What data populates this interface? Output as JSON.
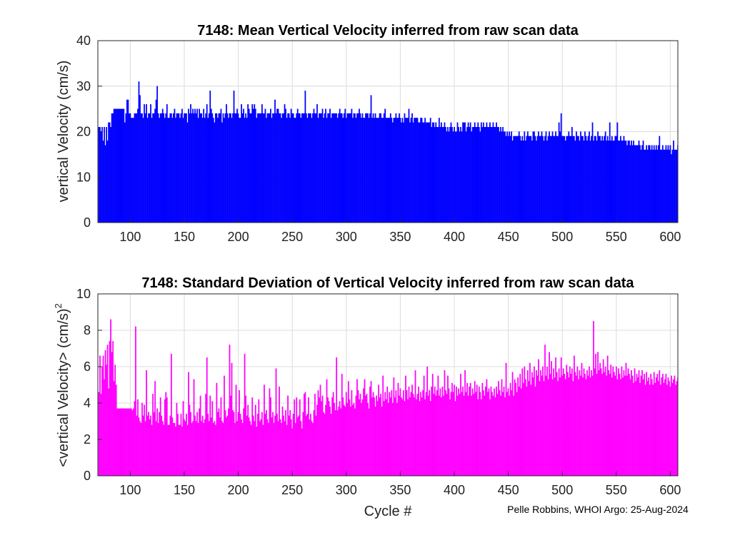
{
  "chart_data": [
    {
      "type": "bar",
      "title": "7148: Mean Vertical Velocity inferred from raw scan data",
      "xlabel": "",
      "ylabel": "vertical Velocity (cm/s)",
      "xlim": [
        70,
        607
      ],
      "ylim": [
        0,
        40
      ],
      "xticks": [
        "100",
        "150",
        "200",
        "250",
        "300",
        "350",
        "400",
        "450",
        "500",
        "550",
        "600"
      ],
      "yticks": [
        "0",
        "10",
        "20",
        "30",
        "40"
      ],
      "grid": true,
      "color": "#0000ff",
      "series": [
        {
          "name": "mean vertical velocity",
          "x_start": 71,
          "x_step": 1,
          "values": [
            21,
            21,
            20,
            21,
            18,
            21,
            17,
            21,
            18,
            22,
            22,
            21,
            24,
            24,
            25,
            25,
            25,
            25,
            25,
            25,
            25,
            25,
            25,
            25,
            22,
            24,
            27,
            27,
            24,
            24,
            23,
            23,
            23,
            24,
            24,
            24,
            25,
            31,
            28,
            24,
            24,
            23,
            26,
            24,
            26,
            23,
            24,
            24,
            26,
            23,
            24,
            24,
            25,
            27,
            30,
            24,
            23,
            24,
            24,
            25,
            24,
            23,
            24,
            26,
            23,
            23,
            24,
            24,
            23,
            24,
            25,
            23,
            24,
            24,
            24,
            23,
            24,
            25,
            23,
            24,
            24,
            24,
            22,
            25,
            24,
            26,
            24,
            25,
            24,
            25,
            24,
            25,
            23,
            25,
            24,
            24,
            23,
            25,
            23,
            24,
            26,
            23,
            24,
            29,
            25,
            24,
            23,
            22,
            24,
            24,
            23,
            24,
            24,
            25,
            22,
            24,
            23,
            24,
            26,
            24,
            23,
            24,
            24,
            23,
            24,
            29,
            24,
            24,
            25,
            24,
            23,
            23,
            26,
            24,
            25,
            23,
            24,
            23,
            26,
            25,
            24,
            24,
            26,
            25,
            26,
            25,
            23,
            24,
            24,
            24,
            24,
            26,
            24,
            24,
            25,
            23,
            24,
            24,
            24,
            25,
            23,
            24,
            24,
            27,
            24,
            25,
            25,
            24,
            24,
            23,
            24,
            24,
            26,
            25,
            23,
            24,
            24,
            23,
            25,
            24,
            24,
            23,
            23,
            24,
            25,
            24,
            24,
            23,
            24,
            24,
            24,
            29,
            24,
            23,
            24,
            24,
            24,
            23,
            24,
            25,
            24,
            24,
            26,
            23,
            24,
            24,
            24,
            25,
            23,
            24,
            25,
            23,
            24,
            24,
            25,
            23,
            24,
            24,
            24,
            24,
            24,
            23,
            24,
            25,
            24,
            24,
            23,
            24,
            25,
            23,
            24,
            24,
            24,
            24,
            25,
            23,
            24,
            24,
            23,
            24,
            24,
            25,
            24,
            23,
            24,
            23,
            23,
            24,
            24,
            24,
            23,
            24,
            28,
            23,
            24,
            23,
            24,
            23,
            23,
            23,
            24,
            24,
            23,
            23,
            24,
            25,
            23,
            23,
            23,
            23,
            24,
            23,
            22,
            23,
            23,
            24,
            23,
            23,
            24,
            23,
            22,
            23,
            22,
            24,
            23,
            23,
            23,
            25,
            22,
            23,
            24,
            22,
            23,
            23,
            23,
            23,
            22,
            22,
            23,
            23,
            22,
            22,
            23,
            22,
            22,
            22,
            22,
            23,
            21,
            22,
            22,
            21,
            22,
            21,
            21,
            23,
            21,
            22,
            21,
            21,
            22,
            21,
            20,
            21,
            20,
            21,
            22,
            21,
            20,
            21,
            20,
            20,
            22,
            21,
            20,
            21,
            20,
            22,
            22,
            22,
            20,
            21,
            22,
            21,
            22,
            20,
            21,
            21,
            22,
            21,
            21,
            22,
            21,
            20,
            22,
            21,
            22,
            21,
            21,
            22,
            21,
            21,
            22,
            21,
            21,
            22,
            21,
            21,
            22,
            21,
            21,
            20,
            21,
            20,
            21,
            20,
            20,
            19,
            20,
            19,
            20,
            19,
            20,
            18,
            19,
            19,
            19,
            19,
            19,
            20,
            19,
            18,
            19,
            18,
            20,
            18,
            19,
            20,
            19,
            19,
            19,
            18,
            20,
            20,
            19,
            18,
            19,
            20,
            19,
            19,
            20,
            19,
            18,
            19,
            20,
            18,
            19,
            20,
            19,
            19,
            20,
            19,
            19,
            20,
            19,
            19,
            22,
            20,
            24,
            19,
            19,
            19,
            18,
            19,
            19,
            20,
            19,
            19,
            21,
            19,
            19,
            18,
            20,
            19,
            19,
            18,
            20,
            19,
            19,
            18,
            20,
            19,
            18,
            19,
            20,
            18,
            19,
            22,
            18,
            19,
            19,
            18,
            20,
            19,
            19,
            18,
            19,
            18,
            19,
            20,
            18,
            19,
            18,
            22,
            18,
            19,
            18,
            18,
            19,
            19,
            22,
            18,
            18,
            19,
            18,
            18,
            19,
            18,
            18,
            17,
            18,
            18,
            17,
            18,
            17,
            18,
            17,
            17,
            17,
            17,
            18,
            17,
            16,
            17,
            18,
            16,
            16,
            17,
            16,
            17,
            17,
            16,
            17,
            16,
            17,
            16,
            17,
            16,
            17,
            19,
            16,
            16,
            17,
            16,
            16,
            17,
            16,
            17,
            16,
            17,
            15,
            16,
            18,
            16,
            16,
            16,
            17,
            18,
            16,
            16,
            17,
            17,
            19,
            16,
            16,
            17,
            16,
            16,
            15,
            17,
            16
          ]
        }
      ]
    },
    {
      "type": "bar",
      "title": "7148: Standard Deviation of Vertical Velocity inferred from raw scan data",
      "xlabel": "Cycle #",
      "ylabel": "<vertical Velocity> (cm/s)",
      "ylabel_superscript": "2",
      "xlim": [
        70,
        607
      ],
      "ylim": [
        0,
        10
      ],
      "xticks": [
        "100",
        "150",
        "200",
        "250",
        "300",
        "350",
        "400",
        "450",
        "500",
        "550",
        "600"
      ],
      "yticks": [
        "0",
        "2",
        "4",
        "6",
        "8",
        "10"
      ],
      "grid": true,
      "color": "#ff00ff",
      "series": [
        {
          "name": "std dev of vertical velocity",
          "x_start": 71,
          "x_step": 1,
          "values": [
            4.6,
            6.6,
            4.5,
            6.0,
            6.6,
            5.3,
            6.9,
            6.1,
            7.2,
            4.8,
            7.4,
            8.6,
            6.8,
            7.4,
            5.2,
            6.1,
            5.0,
            3.7,
            3.7,
            3.7,
            3.7,
            3.7,
            3.7,
            3.7,
            3.7,
            3.7,
            3.7,
            3.7,
            3.7,
            3.7,
            3.7,
            3.6,
            3.7,
            4.1,
            8.2,
            3.3,
            4.2,
            3.2,
            3.0,
            2.9,
            4.0,
            3.3,
            3.9,
            3.0,
            5.8,
            3.3,
            3.5,
            3.1,
            3.3,
            2.8,
            4.5,
            3.5,
            5.2,
            3.0,
            3.7,
            2.9,
            3.5,
            4.3,
            3.3,
            3.0,
            2.8,
            4.2,
            4.6,
            4.3,
            2.8,
            2.8,
            3.3,
            6.7,
            3.2,
            2.9,
            2.9,
            2.7,
            4.0,
            3.4,
            2.8,
            2.8,
            3.4,
            2.7,
            4.1,
            3.1,
            3.0,
            3.4,
            2.8,
            5.7,
            3.9,
            3.5,
            2.9,
            3.0,
            5.3,
            3.3,
            3.0,
            3.5,
            2.9,
            3.7,
            4.4,
            3.0,
            3.3,
            2.9,
            3.1,
            4.5,
            6.5,
            3.4,
            3.0,
            4.4,
            3.2,
            4.1,
            2.9,
            3.0,
            2.8,
            5.1,
            3.5,
            3.7,
            3.2,
            4.3,
            3.0,
            2.9,
            5.5,
            3.6,
            3.2,
            3.3,
            3.7,
            7.2,
            4.4,
            6.2,
            3.6,
            3.5,
            2.9,
            5.0,
            3.0,
            3.5,
            4.7,
            3.4,
            3.1,
            2.9,
            3.7,
            6.7,
            4.4,
            3.3,
            3.9,
            3.2,
            3.0,
            2.8,
            4.3,
            3.3,
            3.0,
            3.9,
            2.7,
            3.4,
            4.2,
            3.0,
            3.1,
            3.5,
            2.8,
            5.0,
            3.4,
            3.6,
            3.1,
            2.9,
            4.8,
            4.3,
            3.2,
            3.5,
            2.9,
            3.3,
            5.9,
            3.4,
            3.0,
            4.9,
            3.1,
            2.9,
            3.8,
            3.3,
            3.0,
            3.6,
            2.8,
            4.4,
            3.3,
            3.6,
            3.1,
            2.6,
            3.4,
            4.2,
            2.9,
            4.3,
            3.2,
            3.3,
            4.2,
            3.0,
            2.6,
            3.5,
            4.5,
            4.6,
            3.3,
            3.4,
            4.3,
            3.1,
            3.4,
            3.0,
            2.9,
            3.6,
            4.5,
            3.3,
            3.9,
            4.7,
            4.3,
            5.0,
            4.1,
            4.4,
            3.5,
            3.4,
            3.9,
            5.3,
            4.3,
            4.1,
            3.8,
            3.4,
            4.3,
            4.6,
            4.0,
            3.6,
            6.5,
            3.6,
            3.8,
            4.1,
            3.7,
            5.6,
            4.3,
            3.9,
            3.8,
            4.6,
            4.0,
            5.2,
            4.2,
            3.8,
            4.7,
            3.9,
            4.0,
            3.7,
            4.4,
            5.3,
            4.7,
            4.2,
            4.5,
            4.0,
            4.2,
            4.8,
            5.3,
            4.4,
            4.5,
            4.0,
            3.7,
            4.9,
            5.2,
            4.3,
            4.6,
            4.3,
            3.8,
            4.4,
            4.1,
            5.0,
            4.3,
            4.5,
            3.8,
            5.5,
            4.1,
            4.6,
            4.2,
            4.9,
            4.0,
            4.6,
            4.3,
            4.7,
            4.0,
            5.4,
            4.3,
            4.7,
            4.0,
            5.1,
            4.4,
            4.8,
            4.3,
            4.2,
            4.7,
            4.1,
            5.5,
            4.7,
            4.2,
            4.9,
            4.3,
            4.6,
            5.0,
            4.5,
            4.3,
            5.8,
            4.2,
            4.5,
            4.9,
            4.1,
            4.6,
            4.3,
            4.7,
            5.5,
            4.2,
            4.6,
            6.0,
            4.4,
            4.7,
            4.1,
            4.9,
            5.6,
            4.5,
            4.9,
            4.4,
            4.7,
            5.5,
            4.4,
            4.8,
            4.3,
            4.9,
            4.4,
            5.8,
            4.7,
            4.5,
            5.5,
            4.8,
            4.2,
            4.6,
            5.1,
            4.6,
            5.0,
            4.1,
            4.9,
            4.4,
            4.8,
            4.5,
            5.6,
            4.6,
            4.9,
            4.4,
            5.8,
            4.6,
            5.1,
            4.4,
            4.9,
            5.1,
            4.4,
            4.8,
            4.5,
            5.2,
            4.6,
            5.0,
            4.2,
            4.9,
            4.6,
            4.2,
            5.1,
            4.7,
            4.4,
            4.9,
            5.3,
            4.6,
            4.8,
            4.2,
            4.9,
            4.6,
            4.4,
            4.8,
            4.3,
            4.9,
            4.5,
            5.2,
            4.7,
            4.4,
            5.3,
            4.6,
            4.9,
            4.3,
            6.2,
            4.6,
            4.8,
            4.4,
            5.1,
            4.7,
            5.7,
            4.4,
            5.3,
            5.1,
            4.6,
            5.4,
            4.9,
            5.6,
            4.8,
            5.9,
            5.1,
            6.0,
            5.3,
            4.9,
            5.8,
            5.2,
            6.2,
            5.0,
            5.7,
            5.4,
            6.0,
            4.9,
            5.8,
            5.5,
            6.4,
            5.2,
            5.8,
            5.5,
            6.0,
            5.2,
            7.2,
            5.5,
            6.0,
            5.3,
            6.8,
            5.6,
            6.3,
            5.3,
            5.9,
            5.4,
            6.5,
            5.7,
            5.2,
            5.9,
            5.4,
            6.5,
            5.5,
            5.9,
            5.6,
            5.3,
            6.1,
            5.7,
            5.4,
            6.0,
            5.6,
            5.9,
            5.2,
            6.6,
            5.7,
            5.5,
            6.0,
            5.3,
            5.8,
            5.5,
            6.2,
            5.4,
            5.9,
            5.6,
            5.3,
            5.8,
            5.5,
            6.0,
            5.4,
            5.8,
            5.5,
            8.5,
            5.9,
            6.7,
            5.6,
            6.8,
            5.8,
            6.2,
            5.9,
            5.6,
            6.4,
            5.7,
            6.0,
            5.5,
            6.6,
            5.8,
            5.6,
            6.1,
            5.4,
            6.0,
            5.7,
            5.5,
            6.0,
            5.3,
            5.9,
            5.6,
            5.3,
            6.0,
            5.4,
            5.8,
            5.5,
            6.2,
            5.5,
            5.9,
            5.6,
            5.3,
            5.8,
            5.5,
            5.1,
            5.9,
            5.2,
            5.6,
            5.4,
            5.8,
            5.1,
            5.5,
            5.8,
            5.3,
            5.6,
            5.0,
            5.7,
            5.2,
            5.4,
            5.0,
            5.6,
            5.3,
            5.0,
            5.7,
            5.1,
            5.4,
            5.6,
            5.2,
            5.8,
            5.0,
            5.4,
            5.6,
            5.1,
            5.3,
            5.6,
            5.0,
            5.4,
            5.2,
            4.9,
            5.5,
            5.1,
            5.3,
            5.5,
            5.0,
            5.2,
            5.4,
            5.0,
            5.3,
            4.9,
            5.5,
            5.2,
            5.0,
            5.4,
            5.1,
            4.9,
            5.3,
            5.0,
            5.2,
            4.8,
            5.4,
            5.1,
            4.9,
            5.3,
            5.0
          ]
        }
      ]
    }
  ],
  "credit": "Pelle Robbins, WHOI Argo: 25-Aug-2024"
}
